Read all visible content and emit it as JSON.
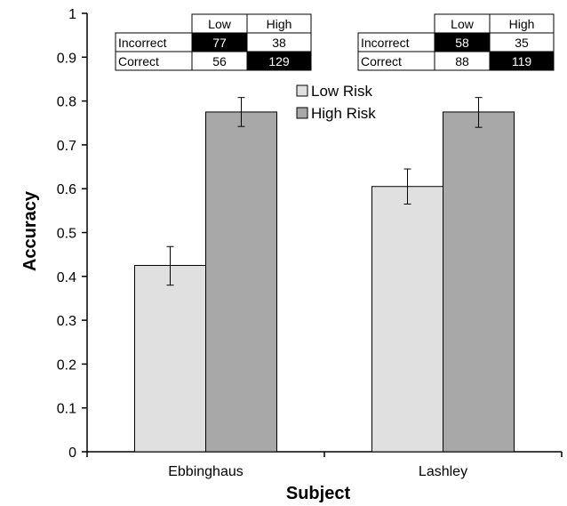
{
  "chart_data": {
    "type": "bar",
    "title": "",
    "xlabel": "Subject",
    "ylabel": "Accuracy",
    "ylim": [
      0,
      1
    ],
    "yticks": [
      "0",
      "0.1",
      "0.2",
      "0.3",
      "0.4",
      "0.5",
      "0.6",
      "0.7",
      "0.8",
      "0.9",
      "1"
    ],
    "categories": [
      "Ebbinghaus",
      "Lashley"
    ],
    "series": [
      {
        "name": "Low Risk",
        "color": "#e0e0e0",
        "values": [
          0.425,
          0.605
        ],
        "err_low": [
          0.38,
          0.565
        ],
        "err_high": [
          0.468,
          0.645
        ]
      },
      {
        "name": "High Risk",
        "color": "#a8a8a8",
        "values": [
          0.775,
          0.775
        ],
        "err_low": [
          0.742,
          0.74
        ],
        "err_high": [
          0.808,
          0.808
        ]
      }
    ],
    "legend": "top-center",
    "grid": false
  },
  "tables": [
    {
      "headers": [
        "",
        "Low",
        "High"
      ],
      "rows": [
        {
          "label": "Incorrect",
          "low": "77",
          "high": "38",
          "dark": "low"
        },
        {
          "label": "Correct",
          "low": "56",
          "high": "129",
          "dark": "high"
        }
      ]
    },
    {
      "headers": [
        "",
        "Low",
        "High"
      ],
      "rows": [
        {
          "label": "Incorrect",
          "low": "58",
          "high": "35",
          "dark": "low"
        },
        {
          "label": "Correct",
          "low": "88",
          "high": "119",
          "dark": "high"
        }
      ]
    }
  ]
}
